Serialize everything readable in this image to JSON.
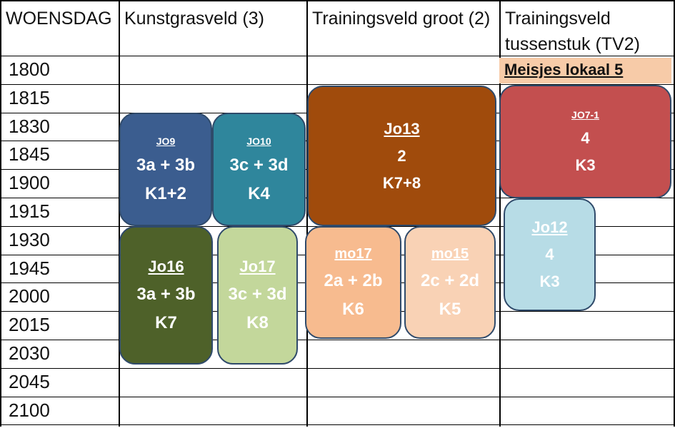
{
  "header": {
    "day": "WOENSDAG",
    "field1": "Kunstgrasveld   (3)",
    "field2": "Trainingsveld groot (2)",
    "field3": "Trainingsveld tussenstuk    (TV2)"
  },
  "times": [
    "1800",
    "1815",
    "1830",
    "1845",
    "1900",
    "1915",
    "1930",
    "1945",
    "2000",
    "2015",
    "2030",
    "2045",
    "2100"
  ],
  "note": "Meisjes lokaal 5",
  "blocks": {
    "jo9": {
      "team": "JO9",
      "group": "3a + 3b",
      "room": "K1+2",
      "color": "#3b5d8f"
    },
    "jo10": {
      "team": "JO10",
      "group": "3c + 3d",
      "room": "K4",
      "color": "#2f869c"
    },
    "jo13": {
      "team": "Jo13",
      "group": "2",
      "room": "K7+8",
      "color": "#a04b0c"
    },
    "jo71": {
      "team": "JO7-1",
      "group": "4",
      "room": "K3",
      "color": "#c34f4f"
    },
    "jo16": {
      "team": "Jo16",
      "group": "3a + 3b",
      "room": "K7",
      "color": "#4e6129"
    },
    "jo17": {
      "team": "Jo17",
      "group": "3c + 3d",
      "room": "K8",
      "color": "#c3d79b"
    },
    "mo17": {
      "team": "mo17",
      "group": "2a + 2b",
      "room": "K6",
      "color": "#f7bb8f"
    },
    "mo15": {
      "team": "mo15",
      "group": "2c + 2d",
      "room": "K5",
      "color": "#f9d2b5"
    },
    "jo12": {
      "team": "Jo12",
      "group": "4",
      "room": "K3",
      "color": "#b7dce6"
    }
  }
}
